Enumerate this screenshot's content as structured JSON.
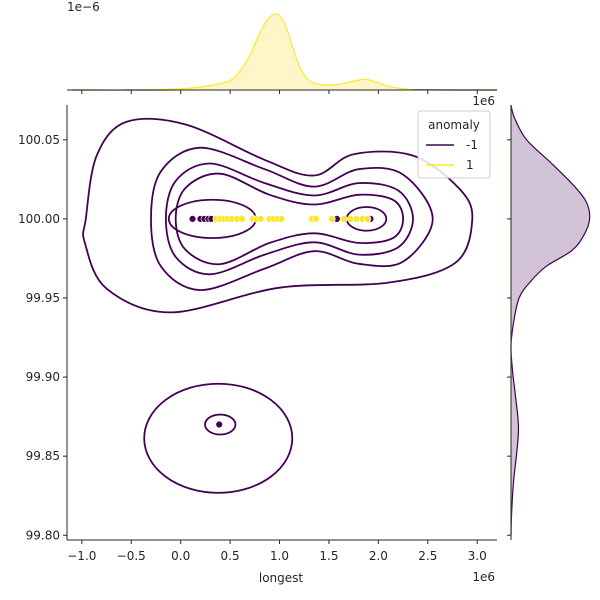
{
  "chart_data": {
    "type": "scatter",
    "subtype": "jointplot-kde",
    "title": "",
    "xlabel": "longest",
    "ylabel": "",
    "x_offset_label": "1e6",
    "y_offset_label": "1e6",
    "top_marginal_offset_label": "1e−6",
    "xlim": [
      -1.15,
      3.2
    ],
    "ylim": [
      99.797,
      100.072
    ],
    "x_ticks": [
      -1.0,
      -0.5,
      0.0,
      0.5,
      1.0,
      1.5,
      2.0,
      2.5,
      3.0
    ],
    "x_tick_labels": [
      "−1.0",
      "−0.5",
      "0.0",
      "0.5",
      "1.0",
      "1.5",
      "2.0",
      "2.5",
      "3.0"
    ],
    "y_ticks": [
      99.8,
      99.85,
      99.9,
      99.95,
      100.0,
      100.05
    ],
    "y_tick_labels": [
      "99.80",
      "99.85",
      "99.90",
      "99.95",
      "100.00",
      "100.05"
    ],
    "grid": false,
    "legend": {
      "title": "anomaly",
      "placement": "top-right",
      "entries": [
        {
          "label": "-1",
          "color": "#440154"
        },
        {
          "label": "1",
          "color": "#fde725"
        }
      ]
    },
    "series": [
      {
        "name": "-1",
        "color": "#440154",
        "points": [
          {
            "x": 0.12,
            "y": 100.0
          },
          {
            "x": 0.2,
            "y": 100.0
          },
          {
            "x": 0.24,
            "y": 100.0
          },
          {
            "x": 0.28,
            "y": 100.0
          },
          {
            "x": 0.31,
            "y": 100.0
          },
          {
            "x": 1.58,
            "y": 100.0
          },
          {
            "x": 1.92,
            "y": 100.0
          },
          {
            "x": 0.39,
            "y": 99.87
          }
        ]
      },
      {
        "name": "1",
        "color": "#fde725",
        "points": [
          {
            "x": 0.36,
            "y": 100.0
          },
          {
            "x": 0.4,
            "y": 100.0
          },
          {
            "x": 0.44,
            "y": 100.0
          },
          {
            "x": 0.48,
            "y": 100.0
          },
          {
            "x": 0.52,
            "y": 100.0
          },
          {
            "x": 0.57,
            "y": 100.0
          },
          {
            "x": 0.62,
            "y": 100.0
          },
          {
            "x": 0.73,
            "y": 100.0
          },
          {
            "x": 0.77,
            "y": 100.0
          },
          {
            "x": 0.81,
            "y": 100.0
          },
          {
            "x": 0.9,
            "y": 100.0
          },
          {
            "x": 0.94,
            "y": 100.0
          },
          {
            "x": 0.98,
            "y": 100.0
          },
          {
            "x": 1.02,
            "y": 100.0
          },
          {
            "x": 1.33,
            "y": 100.0
          },
          {
            "x": 1.37,
            "y": 100.0
          },
          {
            "x": 1.53,
            "y": 100.0
          },
          {
            "x": 1.65,
            "y": 100.0
          },
          {
            "x": 1.72,
            "y": 100.0
          },
          {
            "x": 1.78,
            "y": 100.0
          },
          {
            "x": 1.84,
            "y": 100.0
          },
          {
            "x": 1.89,
            "y": 100.0
          }
        ]
      }
    ],
    "kde_contours": [
      {
        "series": "-1",
        "cx": 0.4,
        "cy": 99.87,
        "rx": 0.154,
        "ry": 0.0063
      },
      {
        "series": "-1",
        "cx": 0.38,
        "cy": 99.8613,
        "rx": 0.749,
        "ry": 0.0345
      },
      {
        "series": "-1",
        "cx": 0.32,
        "cy": 100.0,
        "rx": 0.44,
        "ry": 0.0121
      },
      {
        "series": "-1",
        "cx": 1.88,
        "cy": 100.0,
        "rx": 0.2,
        "ry": 0.0075
      }
    ],
    "kde_contour_paths": [
      {
        "series": "-1",
        "points": [
          [
            -0.97,
            99.985
          ],
          [
            -0.96,
            100.0
          ],
          [
            -0.85,
            100.04
          ],
          [
            -0.55,
            100.0613
          ],
          [
            0.05,
            100.0597
          ],
          [
            0.85,
            100.0373
          ],
          [
            1.35,
            100.0274
          ],
          [
            1.75,
            100.0409
          ],
          [
            2.35,
            100.04
          ],
          [
            2.82,
            100.019
          ],
          [
            2.95,
            100.0
          ],
          [
            2.78,
            99.9723
          ],
          [
            2.1,
            99.9597
          ],
          [
            1.0,
            99.9565
          ],
          [
            -0.1,
            99.9409
          ],
          [
            -0.75,
            99.9559
          ],
          [
            -0.97,
            99.985
          ]
        ]
      },
      {
        "series": "-1",
        "points": [
          [
            -0.3,
            100.0
          ],
          [
            -0.2,
            100.03
          ],
          [
            0.2,
            100.045
          ],
          [
            0.85,
            100.0314
          ],
          [
            1.35,
            100.0204
          ],
          [
            1.8,
            100.0314
          ],
          [
            2.25,
            100.028
          ],
          [
            2.55,
            100.0
          ],
          [
            2.25,
            99.973
          ],
          [
            1.8,
            99.9716
          ],
          [
            1.35,
            99.9796
          ],
          [
            0.85,
            99.9686
          ],
          [
            0.2,
            99.955
          ],
          [
            -0.2,
            99.97
          ],
          [
            -0.3,
            100.0
          ]
        ]
      },
      {
        "series": "-1",
        "points": [
          [
            -0.15,
            100.0
          ],
          [
            -0.05,
            100.024
          ],
          [
            0.3,
            100.035
          ],
          [
            0.85,
            100.0226
          ],
          [
            1.35,
            100.0148
          ],
          [
            1.8,
            100.0226
          ],
          [
            2.2,
            100.018
          ],
          [
            2.35,
            100.0
          ],
          [
            2.2,
            99.982
          ],
          [
            1.8,
            99.9774
          ],
          [
            1.35,
            99.9852
          ],
          [
            0.85,
            99.9774
          ],
          [
            0.3,
            99.965
          ],
          [
            -0.05,
            99.976
          ],
          [
            -0.15,
            100.0
          ]
        ]
      },
      {
        "series": "-1",
        "points": [
          [
            -0.05,
            100.0
          ],
          [
            0.05,
            100.0196
          ],
          [
            0.4,
            100.0286
          ],
          [
            0.9,
            100.0152
          ],
          [
            1.35,
            100.0091
          ],
          [
            1.8,
            100.0152
          ],
          [
            2.15,
            100.012
          ],
          [
            2.25,
            100.0
          ],
          [
            2.15,
            99.988
          ],
          [
            1.8,
            99.9848
          ],
          [
            1.35,
            99.9909
          ],
          [
            0.9,
            99.9848
          ],
          [
            0.4,
            99.9714
          ],
          [
            0.05,
            99.9804
          ],
          [
            -0.05,
            100.0
          ]
        ]
      }
    ],
    "top_marginal": {
      "ylim": [
        0,
        1.27
      ],
      "series": [
        {
          "name": "-1",
          "color": "#440154",
          "fill": "#c6b8cd",
          "density": [
            [
              -1.1,
              0.0
            ],
            [
              -0.2,
              0.0
            ],
            [
              0.3,
              0.005
            ],
            [
              0.5,
              0.012
            ],
            [
              0.8,
              0.02
            ],
            [
              1.0,
              0.02
            ],
            [
              1.3,
              0.01
            ],
            [
              1.8,
              0.016
            ],
            [
              2.1,
              0.006
            ],
            [
              2.8,
              0.0
            ],
            [
              3.2,
              0.0
            ]
          ]
        },
        {
          "name": "1",
          "color": "#fde725",
          "fill": "#fef6c8",
          "density": [
            [
              -1.1,
              0.0
            ],
            [
              -0.5,
              0.0
            ],
            [
              0.0,
              0.02
            ],
            [
              0.3,
              0.07
            ],
            [
              0.5,
              0.15
            ],
            [
              0.6,
              0.3
            ],
            [
              0.7,
              0.55
            ],
            [
              0.8,
              0.9
            ],
            [
              0.88,
              1.12
            ],
            [
              0.96,
              1.21
            ],
            [
              1.04,
              1.1
            ],
            [
              1.12,
              0.75
            ],
            [
              1.2,
              0.38
            ],
            [
              1.3,
              0.15
            ],
            [
              1.4,
              0.09
            ],
            [
              1.55,
              0.08
            ],
            [
              1.7,
              0.12
            ],
            [
              1.85,
              0.17
            ],
            [
              1.95,
              0.14
            ],
            [
              2.1,
              0.06
            ],
            [
              2.3,
              0.01
            ],
            [
              2.5,
              0.0
            ],
            [
              3.2,
              0.0
            ]
          ]
        }
      ]
    },
    "right_marginal": {
      "xlim": [
        0,
        1.27
      ],
      "series": [
        {
          "name": "-1",
          "color": "#440154",
          "fill": "#d2c3d6",
          "density": [
            [
              100.072,
              0.0
            ],
            [
              100.064,
              0.05
            ],
            [
              100.05,
              0.23
            ],
            [
              100.035,
              0.6
            ],
            [
              100.02,
              0.95
            ],
            [
              100.01,
              1.12
            ],
            [
              100.0,
              1.16
            ],
            [
              99.99,
              1.08
            ],
            [
              99.98,
              0.9
            ],
            [
              99.97,
              0.52
            ],
            [
              99.96,
              0.28
            ],
            [
              99.95,
              0.12
            ],
            [
              99.935,
              0.04
            ],
            [
              99.92,
              0.0
            ],
            [
              99.905,
              0.02
            ],
            [
              99.89,
              0.06
            ],
            [
              99.875,
              0.1
            ],
            [
              99.865,
              0.11
            ],
            [
              99.85,
              0.08
            ],
            [
              99.835,
              0.04
            ],
            [
              99.815,
              0.01
            ],
            [
              99.8,
              0.0
            ]
          ]
        },
        {
          "name": "1",
          "color": "#fde725",
          "fill": "#fef6c8",
          "density": [
            [
              100.072,
              0.0
            ],
            [
              99.8,
              0.0
            ]
          ]
        }
      ]
    }
  }
}
